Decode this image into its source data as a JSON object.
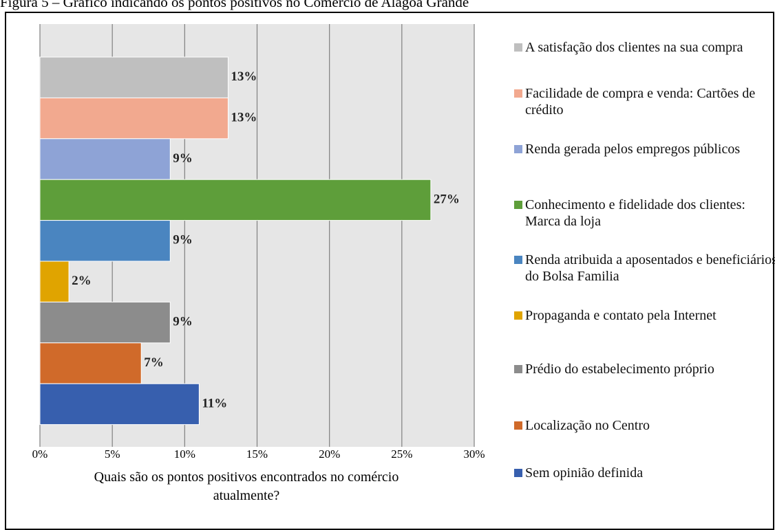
{
  "chart_data": {
    "type": "barh",
    "title": "Figura 5 – Gráfico indicando os pontos positivos no Comércio de Alagoa Grande",
    "xlabel": "Quais são os pontos positivos encontrados no comércio atualmente?",
    "categories": [
      "A satisfação dos clientes na sua compra",
      "Facilidade de compra e venda: Cartões de crédito",
      "Renda gerada pelos empregos públicos",
      "Conhecimento e fidelidade dos clientes: Marca da loja",
      "Renda atribuida a aposentados e beneficiários do Bolsa Familia",
      "Propaganda e contato pela Internet",
      "Prédio do estabelecimento próprio",
      "Localização no Centro",
      "Sem opinião definida"
    ],
    "values": [
      13,
      13,
      9,
      27,
      9,
      2,
      9,
      7,
      11
    ],
    "value_labels": [
      "13%",
      "13%",
      "9%",
      "27%",
      "9%",
      "2%",
      "9%",
      "7%",
      "11%"
    ],
    "colors": [
      "#bfbfbf",
      "#f2a98f",
      "#8ea3d6",
      "#5e9e3a",
      "#4a85c0",
      "#e0a400",
      "#8c8c8c",
      "#d06a2a",
      "#375fae"
    ],
    "xlim": [
      0,
      30
    ],
    "xticks": [
      {
        "value": 0,
        "label": "0%"
      },
      {
        "value": 5,
        "label": "5%"
      },
      {
        "value": 10,
        "label": "10%"
      },
      {
        "value": 15,
        "label": "15%"
      },
      {
        "value": 20,
        "label": "20%"
      },
      {
        "value": 25,
        "label": "25%"
      },
      {
        "value": 30,
        "label": "30%"
      }
    ],
    "grid": true
  }
}
